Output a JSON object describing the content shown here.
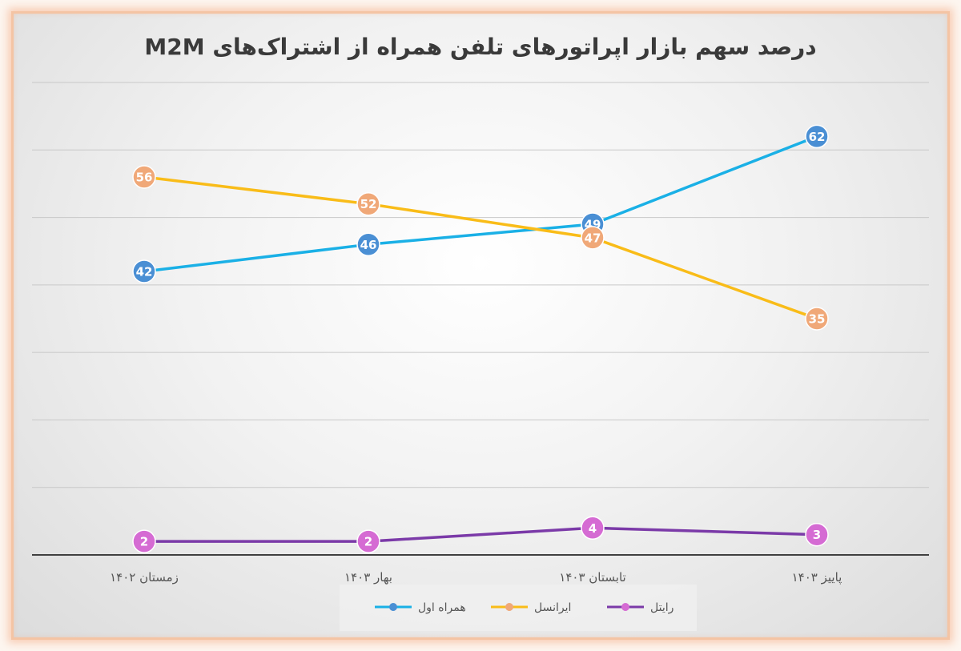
{
  "chart_data": {
    "type": "line",
    "title": "درصد سهم بازار اپراتورهای تلفن همراه از اشتراک‌های M2M",
    "xlabel": "",
    "ylabel": "",
    "categories": [
      "زمستان ۱۴۰۲",
      "بهار ۱۴۰۳",
      "تابستان ۱۴۰۳",
      "پاییز ۱۴۰۳"
    ],
    "ylim": [
      0,
      70
    ],
    "grid": true,
    "legend_position": "bottom",
    "series": [
      {
        "name": "همراه اول",
        "values": [
          42,
          46,
          49,
          62
        ],
        "line_color": "#1ab0e6",
        "marker_color": "#4a8fd4"
      },
      {
        "name": "ایرانسل",
        "values": [
          56,
          52,
          47,
          35
        ],
        "line_color": "#f9bc18",
        "marker_color": "#f0a878"
      },
      {
        "name": "رایتل",
        "values": [
          2,
          2,
          4,
          3
        ],
        "line_color": "#7b3aa8",
        "marker_color": "#d56bd3"
      }
    ]
  }
}
